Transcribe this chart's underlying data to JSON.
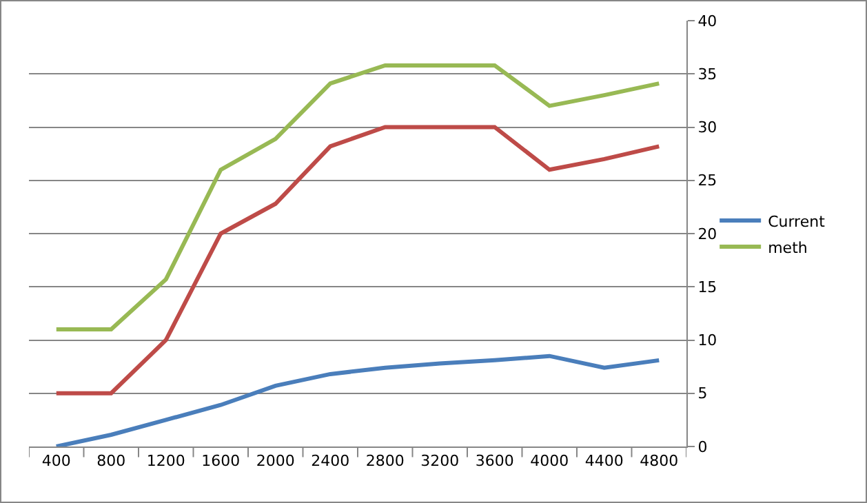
{
  "chart_data": {
    "type": "line",
    "categories": [
      "400",
      "800",
      "1200",
      "1600",
      "2000",
      "2400",
      "2800",
      "3200",
      "3600",
      "4000",
      "4400",
      "4800"
    ],
    "series": [
      {
        "name": "Current",
        "color": "#4a7ebb",
        "values": [
          0,
          1.1,
          2.5,
          3.9,
          5.7,
          6.8,
          7.4,
          7.8,
          8.1,
          8.5,
          7.4,
          8.1
        ]
      },
      {
        "color": "#be4b48",
        "values": [
          5,
          5,
          10,
          20,
          22.8,
          28.2,
          30,
          30,
          30,
          26,
          27,
          28.2
        ]
      },
      {
        "name": "meth",
        "color": "#98b954",
        "values": [
          11,
          11,
          15.7,
          26,
          28.9,
          34.1,
          35.8,
          35.8,
          35.8,
          32,
          33,
          34.1
        ]
      }
    ],
    "ylim": [
      0,
      40
    ],
    "yticks": [
      0,
      5,
      10,
      15,
      20,
      25,
      30,
      35,
      40
    ],
    "grid": "y",
    "legend": "right",
    "marker": "none",
    "line_style": "solid"
  }
}
